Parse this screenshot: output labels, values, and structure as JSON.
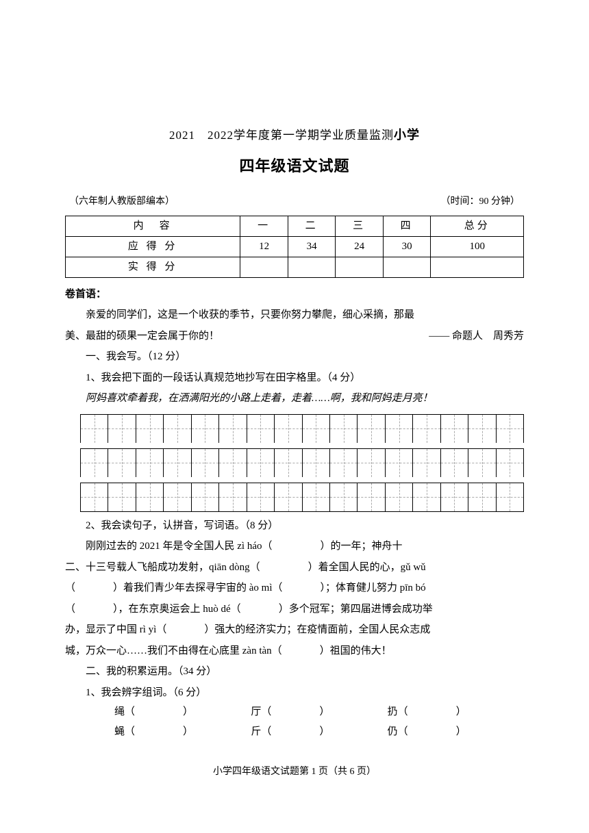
{
  "header": {
    "title_line1": "2021　2022学年度第一学期学业质量监测",
    "title_line1_big": "小学",
    "title_line2": "四年级语文试题",
    "edition_note": "（六年制人教版部编本）",
    "time_note": "（时间：90 分钟）"
  },
  "score_table": {
    "row1": [
      "内　容",
      "一",
      "二",
      "三",
      "四",
      "总分"
    ],
    "row2_label": "应 得 分",
    "row2_values": [
      "12",
      "34",
      "24",
      "30",
      "100"
    ],
    "row3_label": "实 得 分",
    "row3_values": [
      "",
      "",
      "",
      "",
      ""
    ]
  },
  "prologue": {
    "label": "卷首语：",
    "line1": "亲爱的同学们，这是一个收获的季节，只要你努力攀爬，细心采摘，那最",
    "line2_left": "美、最甜的硕果一定会属于你的！",
    "line2_right": "—— 命题人　周秀芳"
  },
  "section1": {
    "title": "一、我会写。（12 分）",
    "q1_label": "1、我会把下面的一段话认真规范地抄写在田字格里。（4 分）",
    "q1_text": "阿妈喜欢牵着我，在洒满阳光的小路上走着，走着……啊，我和阿妈走月亮！",
    "grid_cols": 16,
    "q2_label": "2、我会读句子，认拼音，写词语。（8 分）",
    "q2_line1a": "刚刚过去的 2021 年是令全国人民 zì háo（",
    "q2_line1b": "）的一年；神舟十",
    "q2_line2a": "二、十三号载人飞船成功发射，qiān dòng（",
    "q2_line2b": "）着全国人民的心，gǔ wǔ",
    "q2_line3a": "（",
    "q2_line3b": "）着我们青少年去探寻宇宙的 ào mì（",
    "q2_line3c": "）；体育健儿努力 pīn bó",
    "q2_line4a": "（",
    "q2_line4b": "），在东京奥运会上 huò dé（",
    "q2_line4c": "）多个冠军；第四届进博会成功举",
    "q2_line5a": "办，显示了中国 rì yì（",
    "q2_line5b": "）强大的经济实力；在疫情面前，全国人民众志成",
    "q2_line6a": "城，万众一心……我们不由得在心底里 zàn tàn（",
    "q2_line6b": "）祖国的伟大！"
  },
  "section2": {
    "title": "二、我的积累运用。（34 分）",
    "q1_label": "1、我会辨字组词。（6 分）",
    "row1": [
      "绳（",
      "）",
      "厅（",
      "）",
      "扔（",
      "）"
    ],
    "row2": [
      "蝇（",
      "）",
      "斤（",
      "）",
      "仍（",
      "）"
    ]
  },
  "footer": "小学四年级语文试题第 1 页（共 6 页）"
}
